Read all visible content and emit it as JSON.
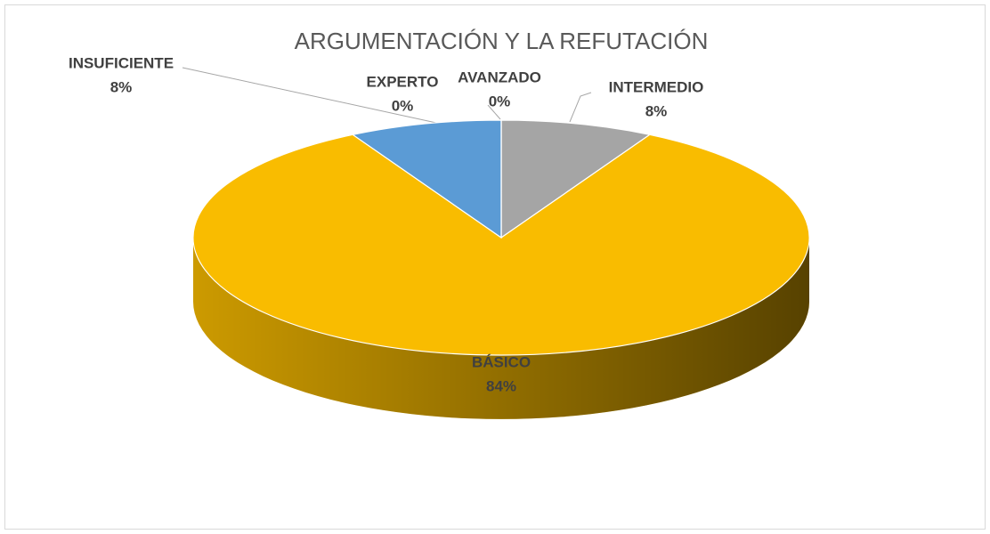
{
  "chart_data": {
    "type": "pie3d",
    "title": "ARGUMENTACIÓN Y LA REFUTACIÓN",
    "categories": [
      "AVANZADO",
      "INTERMEDIO",
      "BÁSICO",
      "INSUFICIENTE",
      "EXPERTO"
    ],
    "values": [
      0,
      8,
      84,
      8,
      0
    ],
    "value_labels": [
      "0%",
      "8%",
      "84%",
      "8%",
      "0%"
    ],
    "colors": [
      "#ed7d31",
      "#a5a5a5",
      "#f9bc00",
      "#5b9bd5",
      "#4472c4"
    ]
  }
}
